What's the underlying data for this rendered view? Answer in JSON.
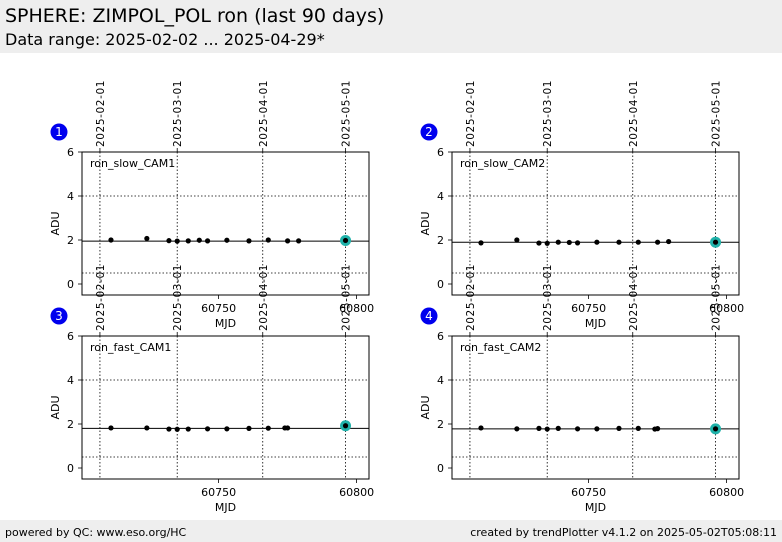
{
  "page": {
    "title": "SPHERE: ZIMPOL_POL ron (last 90 days)",
    "subtitle": "Data range: 2025-02-02 ... 2025-04-29*",
    "footer_left": "powered by QC: www.eso.org/HC",
    "footer_right": "created by trendPlotter v4.1.2 on 2025-05-02T05:08:11"
  },
  "colors": {
    "panel_badge": "#0000ee",
    "point": "#000000",
    "latest_highlight": "#20b2aa",
    "header_bg": "#eeeeee"
  },
  "chart_data": [
    {
      "type": "scatter",
      "badge": "1",
      "label": "ron_slow_CAM1",
      "xlabel": "MJD",
      "ylabel": "ADU",
      "xlim": [
        60700.5,
        60804.5
      ],
      "ylim": [
        -0.5,
        6
      ],
      "xticks": [
        60750,
        60800
      ],
      "yticks": [
        0,
        2,
        4,
        6
      ],
      "date_ticks": [
        {
          "label": "2025-02-01",
          "mjd": 60707
        },
        {
          "label": "2025-03-01",
          "mjd": 60735
        },
        {
          "label": "2025-04-01",
          "mjd": 60766
        },
        {
          "label": "2025-05-01",
          "mjd": 60796
        }
      ],
      "ref_line": 1.95,
      "limit_lines": [
        0.5,
        4.0
      ],
      "grid": "dotted date lines",
      "points": {
        "x": [
          60711,
          60724,
          60732,
          60735,
          60739,
          60743,
          60746,
          60753,
          60761,
          60768,
          60775,
          60779,
          60796
        ],
        "y": [
          2.0,
          2.07,
          1.97,
          1.95,
          1.96,
          1.99,
          1.96,
          1.99,
          1.96,
          2.0,
          1.96,
          1.96,
          1.98
        ]
      },
      "latest": {
        "x": 60796,
        "y": 1.98
      }
    },
    {
      "type": "scatter",
      "badge": "2",
      "label": "ron_slow_CAM2",
      "xlabel": "MJD",
      "ylabel": "ADU",
      "xlim": [
        60700.5,
        60804.5
      ],
      "ylim": [
        -0.5,
        6
      ],
      "xticks": [
        60750,
        60800
      ],
      "yticks": [
        0,
        2,
        4,
        6
      ],
      "date_ticks": [
        {
          "label": "2025-02-01",
          "mjd": 60707
        },
        {
          "label": "2025-03-01",
          "mjd": 60735
        },
        {
          "label": "2025-04-01",
          "mjd": 60766
        },
        {
          "label": "2025-05-01",
          "mjd": 60796
        }
      ],
      "ref_line": 1.9,
      "limit_lines": [
        0.5,
        4.0
      ],
      "grid": "dotted date lines",
      "points": {
        "x": [
          60711,
          60724,
          60732,
          60735,
          60739,
          60743,
          60746,
          60753,
          60761,
          60768,
          60775,
          60779,
          60796
        ],
        "y": [
          1.87,
          2.0,
          1.86,
          1.85,
          1.9,
          1.89,
          1.87,
          1.9,
          1.9,
          1.9,
          1.9,
          1.93,
          1.9
        ]
      },
      "latest": {
        "x": 60796,
        "y": 1.9
      }
    },
    {
      "type": "scatter",
      "badge": "3",
      "label": "ron_fast_CAM1",
      "xlabel": "MJD",
      "ylabel": "ADU",
      "xlim": [
        60700.5,
        60804.5
      ],
      "ylim": [
        -0.5,
        6
      ],
      "xticks": [
        60750,
        60800
      ],
      "yticks": [
        0,
        2,
        4,
        6
      ],
      "date_ticks": [
        {
          "label": "2025-02-01",
          "mjd": 60707
        },
        {
          "label": "2025-03-01",
          "mjd": 60735
        },
        {
          "label": "2025-04-01",
          "mjd": 60766
        },
        {
          "label": "2025-05-01",
          "mjd": 60796
        }
      ],
      "ref_line": 1.8,
      "limit_lines": [
        0.5,
        4.0
      ],
      "grid": "dotted date lines",
      "points": {
        "x": [
          60711,
          60724,
          60732,
          60735,
          60739,
          60746,
          60753,
          60761,
          60768,
          60774,
          60775,
          60796
        ],
        "y": [
          1.82,
          1.82,
          1.77,
          1.76,
          1.77,
          1.78,
          1.78,
          1.8,
          1.81,
          1.82,
          1.82,
          1.92
        ]
      },
      "latest": {
        "x": 60796,
        "y": 1.92
      }
    },
    {
      "type": "scatter",
      "badge": "4",
      "label": "ron_fast_CAM2",
      "xlabel": "MJD",
      "ylabel": "ADU",
      "xlim": [
        60700.5,
        60804.5
      ],
      "ylim": [
        -0.5,
        6
      ],
      "xticks": [
        60750,
        60800
      ],
      "yticks": [
        0,
        2,
        4,
        6
      ],
      "date_ticks": [
        {
          "label": "2025-02-01",
          "mjd": 60707
        },
        {
          "label": "2025-03-01",
          "mjd": 60735
        },
        {
          "label": "2025-04-01",
          "mjd": 60766
        },
        {
          "label": "2025-05-01",
          "mjd": 60796
        }
      ],
      "ref_line": 1.78,
      "limit_lines": [
        0.5,
        4.0
      ],
      "grid": "dotted date lines",
      "points": {
        "x": [
          60711,
          60724,
          60732,
          60735,
          60739,
          60746,
          60753,
          60761,
          60768,
          60774,
          60775,
          60796
        ],
        "y": [
          1.82,
          1.78,
          1.8,
          1.77,
          1.8,
          1.78,
          1.78,
          1.8,
          1.8,
          1.77,
          1.79,
          1.78
        ]
      },
      "latest": {
        "x": 60796,
        "y": 1.78
      }
    }
  ]
}
